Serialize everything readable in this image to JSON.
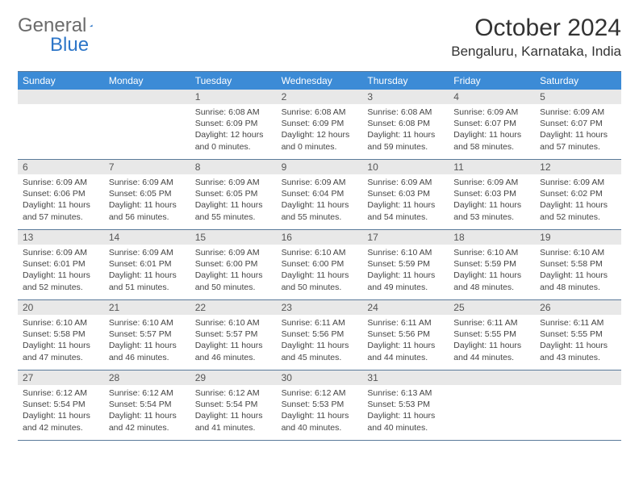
{
  "logo": {
    "text1": "General",
    "text2": "Blue"
  },
  "title": "October 2024",
  "location": "Bengaluru, Karnataka, India",
  "colors": {
    "dowHeader": "#3c8bd6",
    "dayBar": "#e8e8e8",
    "ruleLine": "#5a7a9a",
    "logoBlue": "#2d76c8"
  },
  "dow": [
    "Sunday",
    "Monday",
    "Tuesday",
    "Wednesday",
    "Thursday",
    "Friday",
    "Saturday"
  ],
  "weeks": [
    [
      {
        "n": "",
        "sr": "",
        "ss": "",
        "dl": ""
      },
      {
        "n": "",
        "sr": "",
        "ss": "",
        "dl": ""
      },
      {
        "n": "1",
        "sr": "Sunrise: 6:08 AM",
        "ss": "Sunset: 6:09 PM",
        "dl": "Daylight: 12 hours and 0 minutes."
      },
      {
        "n": "2",
        "sr": "Sunrise: 6:08 AM",
        "ss": "Sunset: 6:09 PM",
        "dl": "Daylight: 12 hours and 0 minutes."
      },
      {
        "n": "3",
        "sr": "Sunrise: 6:08 AM",
        "ss": "Sunset: 6:08 PM",
        "dl": "Daylight: 11 hours and 59 minutes."
      },
      {
        "n": "4",
        "sr": "Sunrise: 6:09 AM",
        "ss": "Sunset: 6:07 PM",
        "dl": "Daylight: 11 hours and 58 minutes."
      },
      {
        "n": "5",
        "sr": "Sunrise: 6:09 AM",
        "ss": "Sunset: 6:07 PM",
        "dl": "Daylight: 11 hours and 57 minutes."
      }
    ],
    [
      {
        "n": "6",
        "sr": "Sunrise: 6:09 AM",
        "ss": "Sunset: 6:06 PM",
        "dl": "Daylight: 11 hours and 57 minutes."
      },
      {
        "n": "7",
        "sr": "Sunrise: 6:09 AM",
        "ss": "Sunset: 6:05 PM",
        "dl": "Daylight: 11 hours and 56 minutes."
      },
      {
        "n": "8",
        "sr": "Sunrise: 6:09 AM",
        "ss": "Sunset: 6:05 PM",
        "dl": "Daylight: 11 hours and 55 minutes."
      },
      {
        "n": "9",
        "sr": "Sunrise: 6:09 AM",
        "ss": "Sunset: 6:04 PM",
        "dl": "Daylight: 11 hours and 55 minutes."
      },
      {
        "n": "10",
        "sr": "Sunrise: 6:09 AM",
        "ss": "Sunset: 6:03 PM",
        "dl": "Daylight: 11 hours and 54 minutes."
      },
      {
        "n": "11",
        "sr": "Sunrise: 6:09 AM",
        "ss": "Sunset: 6:03 PM",
        "dl": "Daylight: 11 hours and 53 minutes."
      },
      {
        "n": "12",
        "sr": "Sunrise: 6:09 AM",
        "ss": "Sunset: 6:02 PM",
        "dl": "Daylight: 11 hours and 52 minutes."
      }
    ],
    [
      {
        "n": "13",
        "sr": "Sunrise: 6:09 AM",
        "ss": "Sunset: 6:01 PM",
        "dl": "Daylight: 11 hours and 52 minutes."
      },
      {
        "n": "14",
        "sr": "Sunrise: 6:09 AM",
        "ss": "Sunset: 6:01 PM",
        "dl": "Daylight: 11 hours and 51 minutes."
      },
      {
        "n": "15",
        "sr": "Sunrise: 6:09 AM",
        "ss": "Sunset: 6:00 PM",
        "dl": "Daylight: 11 hours and 50 minutes."
      },
      {
        "n": "16",
        "sr": "Sunrise: 6:10 AM",
        "ss": "Sunset: 6:00 PM",
        "dl": "Daylight: 11 hours and 50 minutes."
      },
      {
        "n": "17",
        "sr": "Sunrise: 6:10 AM",
        "ss": "Sunset: 5:59 PM",
        "dl": "Daylight: 11 hours and 49 minutes."
      },
      {
        "n": "18",
        "sr": "Sunrise: 6:10 AM",
        "ss": "Sunset: 5:59 PM",
        "dl": "Daylight: 11 hours and 48 minutes."
      },
      {
        "n": "19",
        "sr": "Sunrise: 6:10 AM",
        "ss": "Sunset: 5:58 PM",
        "dl": "Daylight: 11 hours and 48 minutes."
      }
    ],
    [
      {
        "n": "20",
        "sr": "Sunrise: 6:10 AM",
        "ss": "Sunset: 5:58 PM",
        "dl": "Daylight: 11 hours and 47 minutes."
      },
      {
        "n": "21",
        "sr": "Sunrise: 6:10 AM",
        "ss": "Sunset: 5:57 PM",
        "dl": "Daylight: 11 hours and 46 minutes."
      },
      {
        "n": "22",
        "sr": "Sunrise: 6:10 AM",
        "ss": "Sunset: 5:57 PM",
        "dl": "Daylight: 11 hours and 46 minutes."
      },
      {
        "n": "23",
        "sr": "Sunrise: 6:11 AM",
        "ss": "Sunset: 5:56 PM",
        "dl": "Daylight: 11 hours and 45 minutes."
      },
      {
        "n": "24",
        "sr": "Sunrise: 6:11 AM",
        "ss": "Sunset: 5:56 PM",
        "dl": "Daylight: 11 hours and 44 minutes."
      },
      {
        "n": "25",
        "sr": "Sunrise: 6:11 AM",
        "ss": "Sunset: 5:55 PM",
        "dl": "Daylight: 11 hours and 44 minutes."
      },
      {
        "n": "26",
        "sr": "Sunrise: 6:11 AM",
        "ss": "Sunset: 5:55 PM",
        "dl": "Daylight: 11 hours and 43 minutes."
      }
    ],
    [
      {
        "n": "27",
        "sr": "Sunrise: 6:12 AM",
        "ss": "Sunset: 5:54 PM",
        "dl": "Daylight: 11 hours and 42 minutes."
      },
      {
        "n": "28",
        "sr": "Sunrise: 6:12 AM",
        "ss": "Sunset: 5:54 PM",
        "dl": "Daylight: 11 hours and 42 minutes."
      },
      {
        "n": "29",
        "sr": "Sunrise: 6:12 AM",
        "ss": "Sunset: 5:54 PM",
        "dl": "Daylight: 11 hours and 41 minutes."
      },
      {
        "n": "30",
        "sr": "Sunrise: 6:12 AM",
        "ss": "Sunset: 5:53 PM",
        "dl": "Daylight: 11 hours and 40 minutes."
      },
      {
        "n": "31",
        "sr": "Sunrise: 6:13 AM",
        "ss": "Sunset: 5:53 PM",
        "dl": "Daylight: 11 hours and 40 minutes."
      },
      {
        "n": "",
        "sr": "",
        "ss": "",
        "dl": ""
      },
      {
        "n": "",
        "sr": "",
        "ss": "",
        "dl": ""
      }
    ]
  ]
}
